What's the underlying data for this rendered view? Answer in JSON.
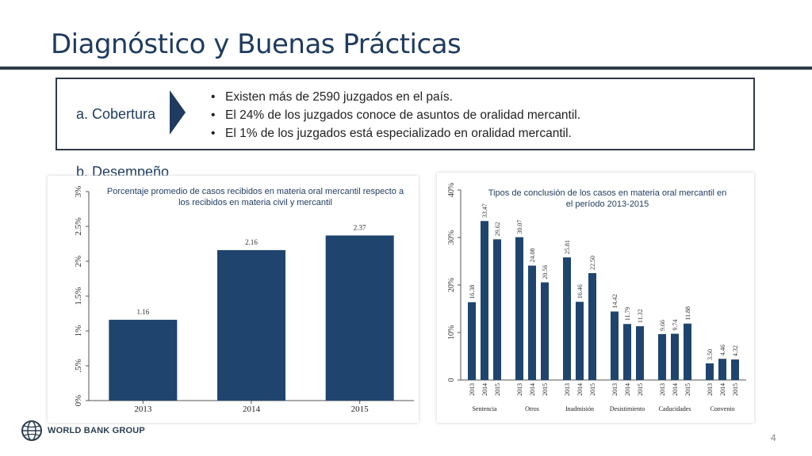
{
  "title": "Diagnóstico y Buenas Prácticas",
  "coverage": {
    "label": "a. Cobertura",
    "bullets": [
      "Existen más de 2590 juzgados en el país.",
      "El 24% de los juzgados conoce de asuntos de oralidad mercantil.",
      "El 1% de los juzgados está especializado en oralidad mercantil."
    ]
  },
  "performance_label": "b. Desempeño",
  "chart_data": [
    {
      "type": "bar",
      "title": "Porcentaje promedio de casos recibidos en materia oral mercantil respecto a los recibidos en materia civil y mercantil",
      "categories": [
        "2013",
        "2014",
        "2015"
      ],
      "values": [
        1.16,
        2.16,
        2.37
      ],
      "value_labels": [
        "1.16",
        "2.16",
        "2.37"
      ],
      "ylim": [
        0,
        3
      ],
      "yticks": [
        "0%",
        ".5%",
        "1%",
        "1.5%",
        "2%",
        "2.5%",
        "3%"
      ],
      "grid": false,
      "color": "#1f456e"
    },
    {
      "type": "bar",
      "title": "Tipos de conclusión de los casos en materia oral mercantil en el período 2013-2015",
      "groups": [
        {
          "name": "Sentencia",
          "years": [
            "2013",
            "2014",
            "2015"
          ],
          "values": [
            16.38,
            33.47,
            29.62
          ]
        },
        {
          "name": "Otros",
          "years": [
            "2013",
            "2014",
            "2015"
          ],
          "values": [
            30.07,
            24.08,
            20.56
          ]
        },
        {
          "name": "Inadmisión",
          "years": [
            "2013",
            "2014",
            "2015"
          ],
          "values": [
            25.81,
            16.46,
            22.5
          ]
        },
        {
          "name": "Desistimiento",
          "years": [
            "2013",
            "2014",
            "2015"
          ],
          "values": [
            14.42,
            11.79,
            11.32
          ]
        },
        {
          "name": "Caducidades",
          "years": [
            "2013",
            "2014",
            "2015"
          ],
          "values": [
            9.66,
            9.74,
            11.88
          ]
        },
        {
          "name": "Convenio",
          "years": [
            "2013",
            "2014",
            "2015"
          ],
          "values": [
            3.5,
            4.46,
            4.32
          ]
        }
      ],
      "value_labels": [
        [
          "16.38",
          "33.47",
          "29.62"
        ],
        [
          "30.07",
          "24.08",
          "20.56"
        ],
        [
          "25.81",
          "16.46",
          "22.50"
        ],
        [
          "14.42",
          "11.79",
          "11.32"
        ],
        [
          "9.66",
          "9.74",
          "11.88"
        ],
        [
          "3.50",
          "4.46",
          "4.32"
        ]
      ],
      "ylim": [
        0,
        40
      ],
      "yticks": [
        "0",
        "10%",
        "20%",
        "30%",
        "40%"
      ],
      "grid": false,
      "color": "#1f456e"
    }
  ],
  "footer": {
    "logo_text": "WORLD BANK GROUP",
    "page_number": "4"
  },
  "colors": {
    "title": "#1f3b5f",
    "bar": "#1f456e",
    "rule": "#2f3b46"
  }
}
